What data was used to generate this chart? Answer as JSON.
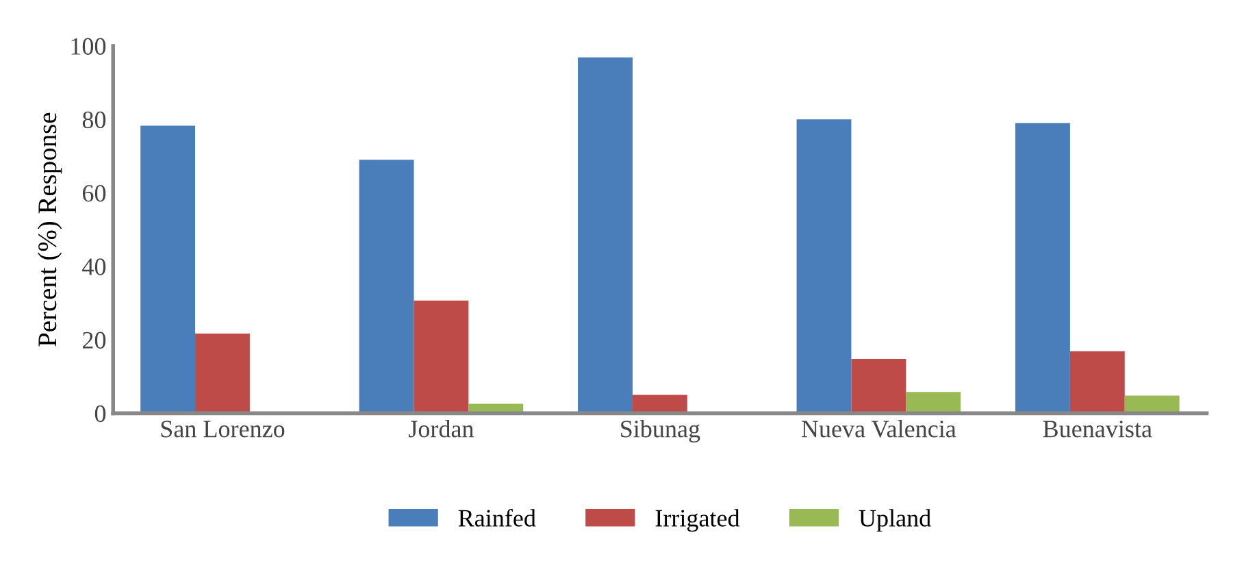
{
  "chart_data": {
    "type": "bar",
    "ylabel": "Percent (%) Response",
    "categories": [
      "San Lorenzo",
      "Jordan",
      "Sibunag",
      "Nueva Valencia",
      "Buenavista"
    ],
    "series": [
      {
        "name": "Rainfed",
        "color": "#4a7ebb",
        "values": [
          78.3,
          69,
          96.9,
          80,
          79
        ]
      },
      {
        "name": "Irrigated",
        "color": "#be4b48",
        "values": [
          21.7,
          30.7,
          5,
          14.8,
          16.9
        ]
      },
      {
        "name": "Upland",
        "color": "#98b954",
        "values": [
          0,
          2.6,
          0,
          5.8,
          4.8
        ]
      }
    ],
    "ylim": [
      0,
      100
    ],
    "yticks": [
      0,
      20,
      40,
      60,
      80,
      100
    ],
    "grid": false,
    "legend": "bottom"
  }
}
